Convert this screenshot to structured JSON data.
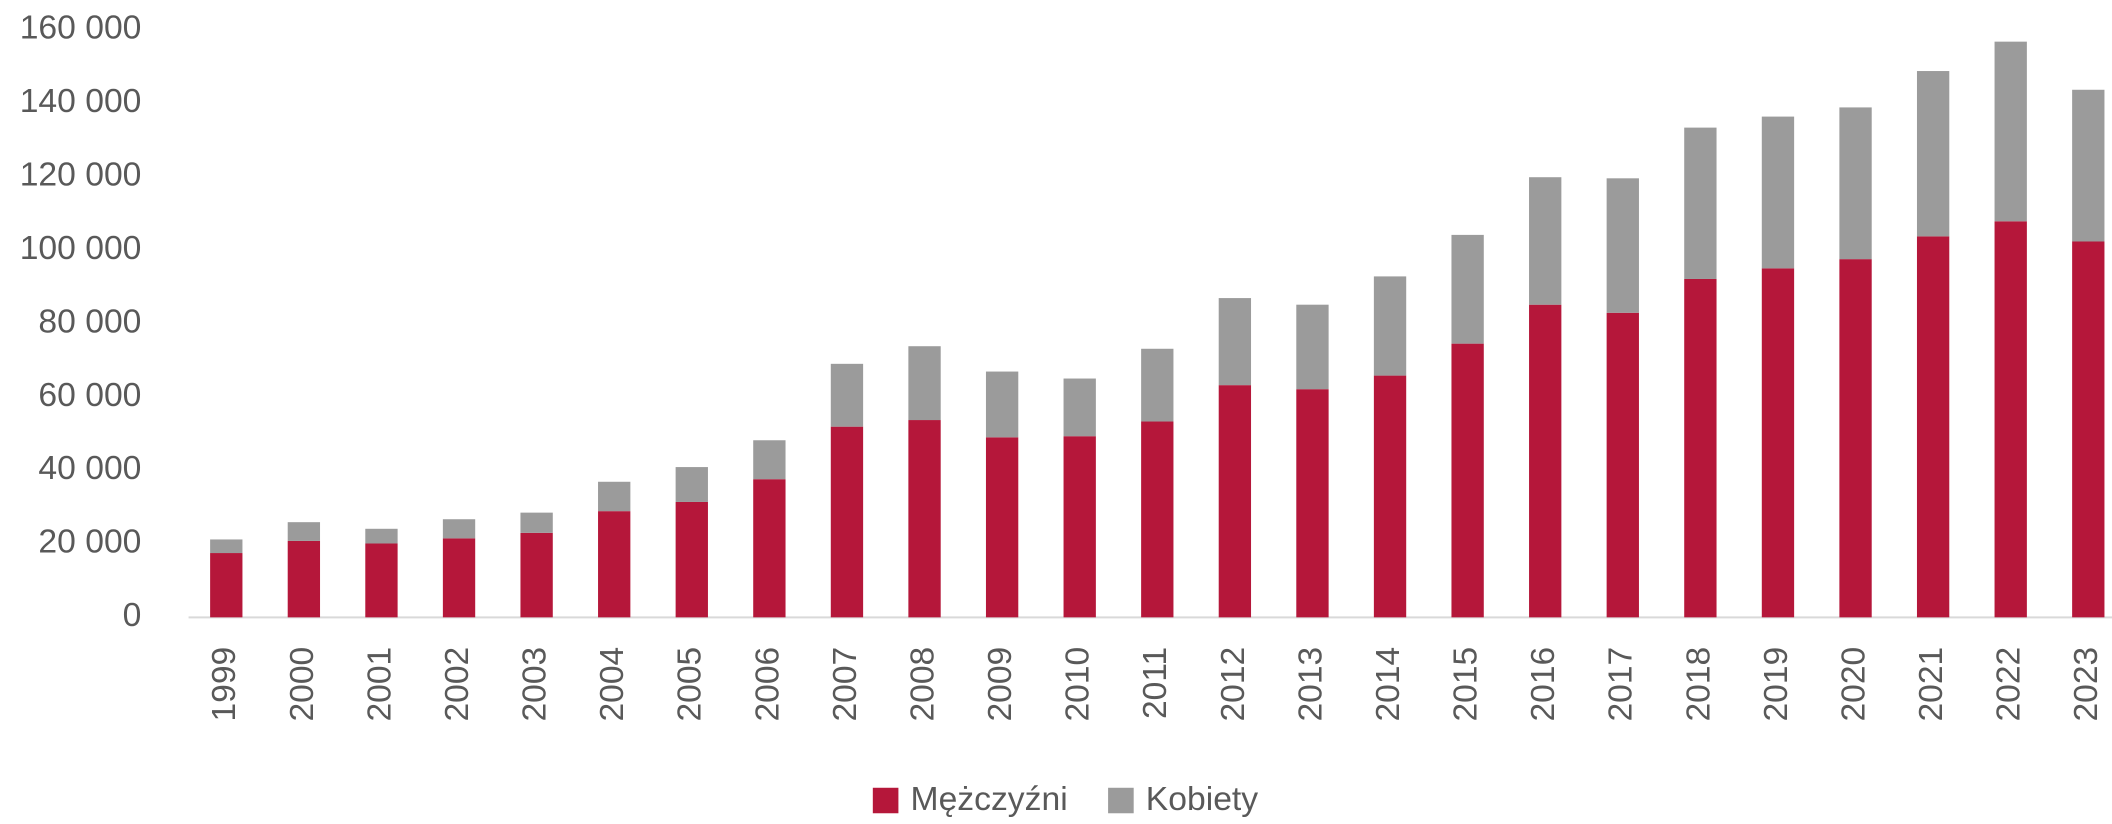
{
  "chart_data": {
    "type": "bar",
    "stacked": true,
    "categories": [
      "1999",
      "2000",
      "2001",
      "2002",
      "2003",
      "2004",
      "2005",
      "2006",
      "2007",
      "2008",
      "2009",
      "2010",
      "2011",
      "2012",
      "2013",
      "2014",
      "2015",
      "2016",
      "2017",
      "2018",
      "2019",
      "2020",
      "2021",
      "2022",
      "2023"
    ],
    "series": [
      {
        "name": "Mężczyźni",
        "color": "#b5173a",
        "values": [
          17500,
          20800,
          20100,
          21500,
          23000,
          28900,
          31400,
          37600,
          51900,
          53700,
          49000,
          49300,
          53300,
          63200,
          62100,
          65800,
          74500,
          85100,
          82900,
          92100,
          95000,
          97500,
          103700,
          107800,
          102300
        ]
      },
      {
        "name": "Kobiety",
        "color": "#9b9b9b",
        "values": [
          3700,
          5100,
          4000,
          5200,
          5500,
          8000,
          9500,
          10600,
          17100,
          20100,
          17900,
          15700,
          19800,
          23700,
          23000,
          27000,
          29600,
          34700,
          36600,
          41200,
          41300,
          41300,
          45000,
          48900,
          41300
        ]
      }
    ],
    "ylim": [
      0,
      160000
    ],
    "yticks": [
      0,
      {
        "value": 20000,
        "label": "20 000"
      },
      {
        "value": 40000,
        "label": "40 000"
      },
      {
        "value": 60000,
        "label": "60 000"
      },
      {
        "value": 80000,
        "label": "80 000"
      },
      {
        "value": 100000,
        "label": "100 000"
      },
      {
        "value": 120000,
        "label": "120 000"
      },
      {
        "value": 140000,
        "label": "140 000"
      },
      {
        "value": 160000,
        "label": "160 000"
      }
    ],
    "grid": false,
    "legend": "bottom"
  }
}
